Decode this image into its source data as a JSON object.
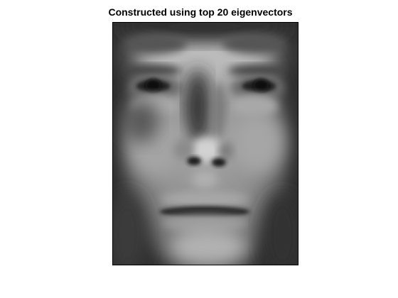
{
  "figure": {
    "title": "Constructed using top 20 eigenvectors"
  },
  "image": {
    "subject": "grayscale-face-reconstruction",
    "colormap": "gray"
  }
}
